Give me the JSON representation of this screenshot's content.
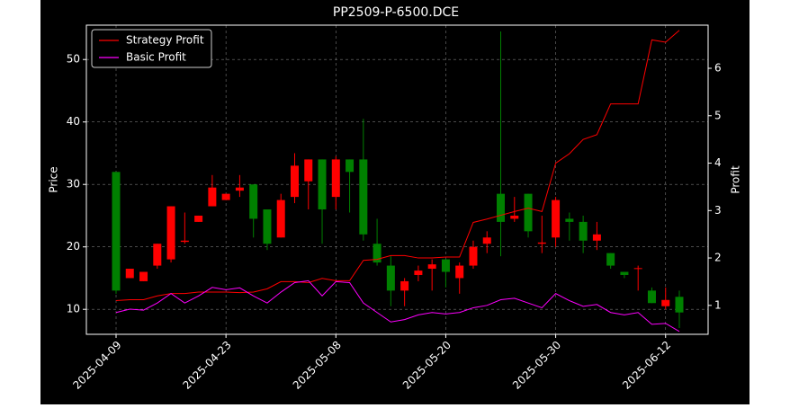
{
  "chart_data": {
    "type": "candlestick",
    "title": "PP2509-P-6500.DCE",
    "ylabel": "Price",
    "y2label": "Profit",
    "categories": [
      "2025-04-09",
      null,
      null,
      null,
      null,
      null,
      null,
      null,
      "2025-04-23",
      null,
      null,
      null,
      null,
      null,
      null,
      null,
      "2025-05-08",
      null,
      null,
      null,
      null,
      null,
      null,
      null,
      "2025-05-20",
      null,
      null,
      null,
      null,
      null,
      null,
      null,
      "2025-05-30",
      null,
      null,
      null,
      null,
      null,
      null,
      null,
      "2025-06-12",
      null
    ],
    "candles": {
      "open": [
        13,
        16.5,
        16,
        20.5,
        26.5,
        21,
        25,
        29.5,
        28.5,
        29.5,
        24.5,
        20.5,
        27.5,
        33,
        34,
        26,
        34,
        32,
        22,
        17.5,
        13,
        14.5,
        16.2,
        17.2,
        16,
        17,
        20,
        21.5,
        24,
        25,
        22.5,
        20.7,
        27.5,
        24,
        21,
        22,
        17,
        15.5,
        16.6,
        11,
        11.5,
        9.5
      ],
      "high": [
        32,
        16.5,
        16,
        20.5,
        26.5,
        25.5,
        25,
        31.5,
        28.5,
        31.5,
        30,
        26,
        28.5,
        35,
        34,
        34,
        34.5,
        34,
        40.5,
        24.5,
        18.5,
        15,
        17,
        18,
        18,
        17.5,
        21,
        22.5,
        54.5,
        28,
        28.5,
        25,
        28,
        25.5,
        25,
        24,
        19,
        16,
        17,
        13.5,
        13.5,
        13
      ],
      "low": [
        12.5,
        15,
        14.5,
        16.5,
        17.5,
        20.5,
        24,
        26.5,
        27.5,
        28,
        21.5,
        19.5,
        21.5,
        27,
        26,
        20.5,
        26,
        25.5,
        21,
        17,
        10.5,
        10.5,
        14.5,
        13,
        13.5,
        12.5,
        16.5,
        19,
        18.5,
        24,
        21.5,
        19,
        20,
        21,
        19,
        19.5,
        16.5,
        15,
        13,
        11,
        10,
        7
      ],
      "close": [
        32,
        15,
        14.5,
        17,
        18,
        20.8,
        24,
        26.5,
        27.5,
        29,
        30,
        26,
        21.5,
        28,
        30.5,
        34,
        28,
        34,
        34,
        20.5,
        17,
        13,
        15.5,
        16.5,
        18,
        15,
        17,
        20.5,
        28.5,
        24.5,
        28.5,
        20.5,
        21.5,
        24.5,
        24,
        21,
        19,
        16,
        16.5,
        13,
        10.5,
        12
      ],
      "up_color": "#008000",
      "down_color": "#ff0000"
    },
    "series": [
      {
        "name": "Strategy Profit",
        "color": "#ff0000",
        "axis": "y2",
        "values": [
          1.1,
          1.12,
          1.12,
          1.2,
          1.25,
          1.25,
          1.28,
          1.28,
          1.28,
          1.27,
          1.28,
          1.35,
          1.5,
          1.5,
          1.48,
          1.57,
          1.52,
          1.52,
          1.95,
          1.97,
          2.05,
          2.05,
          2.0,
          2.0,
          2.02,
          2.02,
          2.75,
          2.82,
          2.9,
          2.98,
          3.05,
          2.98,
          4.0,
          4.2,
          4.5,
          4.6,
          5.25,
          5.25,
          5.25,
          6.6,
          6.55,
          6.8
        ]
      },
      {
        "name": "Basic Profit",
        "color": "#ff00ff",
        "axis": "y2",
        "values": [
          0.85,
          0.92,
          0.9,
          1.05,
          1.25,
          1.05,
          1.2,
          1.38,
          1.33,
          1.37,
          1.2,
          1.05,
          1.28,
          1.48,
          1.52,
          1.2,
          1.5,
          1.48,
          1.05,
          0.85,
          0.65,
          0.7,
          0.8,
          0.85,
          0.82,
          0.85,
          0.95,
          1.0,
          1.12,
          1.15,
          1.05,
          0.95,
          1.25,
          1.1,
          0.98,
          1.02,
          0.85,
          0.8,
          0.85,
          0.6,
          0.62,
          0.45
        ]
      }
    ],
    "ylim": [
      6,
      55.5
    ],
    "yticks": [
      10,
      20,
      30,
      40,
      50
    ],
    "y2lim": [
      0.39,
      6.91
    ],
    "y2ticks": [
      1,
      2,
      3,
      4,
      5,
      6
    ],
    "grid": true,
    "legend": "upper left"
  }
}
